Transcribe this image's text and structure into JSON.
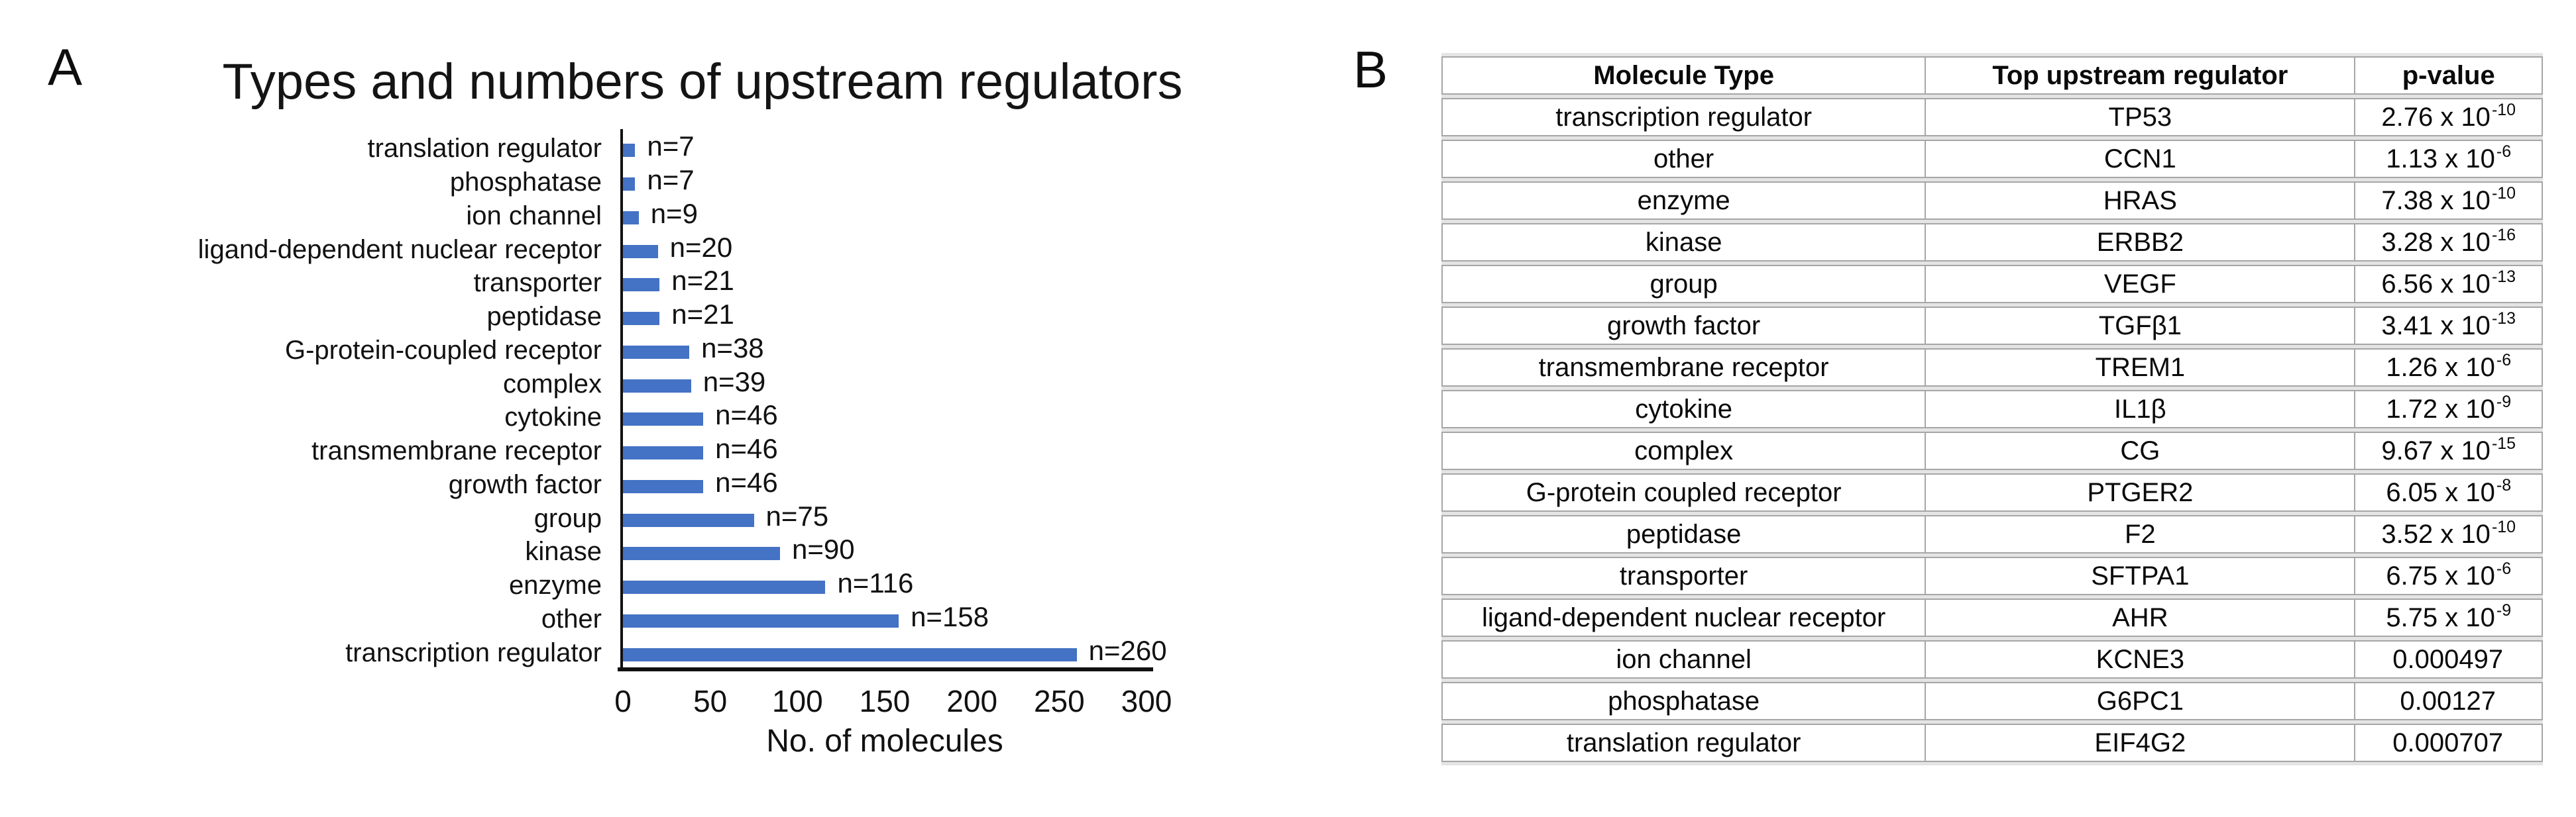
{
  "panel_labels": {
    "a": "A",
    "b": "B"
  },
  "colors": {
    "bar": "#4472C4",
    "axis": "#111111",
    "table_border": "#a6a6a6",
    "text": "#000000",
    "background": "#ffffff"
  },
  "chart_data": [
    {
      "type": "bar",
      "orientation": "horizontal",
      "title": "Types and numbers of upstream regulators",
      "xlabel": "No. of molecules",
      "xlim": [
        0,
        300
      ],
      "x_ticks": [
        0,
        50,
        100,
        150,
        200,
        250,
        300
      ],
      "grid": false,
      "legend": false,
      "bar_color": "#4472C4",
      "categories": [
        "translation regulator",
        "phosphatase",
        "ion channel",
        "ligand-dependent nuclear receptor",
        "transporter",
        "peptidase",
        "G-protein-coupled receptor",
        "complex",
        "cytokine",
        "transmembrane receptor",
        "growth factor",
        "group",
        "kinase",
        "enzyme",
        "other",
        "transcription regulator"
      ],
      "values": [
        7,
        7,
        9,
        20,
        21,
        21,
        38,
        39,
        46,
        46,
        46,
        75,
        90,
        116,
        158,
        260
      ],
      "bar_labels": [
        "n=7",
        "n=7",
        "n=9",
        "n=20",
        "n=21",
        "n=21",
        "n=38",
        "n=39",
        "n=46",
        "n=46",
        "n=46",
        "n=75",
        "n=90",
        "n=116",
        "n=158",
        "n=260"
      ]
    },
    {
      "type": "table",
      "columns": [
        "Molecule Type",
        "Top upstream regulator",
        "p-value"
      ],
      "rows": [
        {
          "molecule_type": "transcription regulator",
          "top_regulator": "TP53",
          "p_base": "2.76 x 10",
          "p_exp": "-10"
        },
        {
          "molecule_type": "other",
          "top_regulator": "CCN1",
          "p_base": "1.13 x 10",
          "p_exp": "-6"
        },
        {
          "molecule_type": "enzyme",
          "top_regulator": "HRAS",
          "p_base": "7.38 x 10",
          "p_exp": "-10"
        },
        {
          "molecule_type": "kinase",
          "top_regulator": "ERBB2",
          "p_base": "3.28 x 10",
          "p_exp": "-16"
        },
        {
          "molecule_type": "group",
          "top_regulator": "VEGF",
          "p_base": "6.56 x 10",
          "p_exp": "-13"
        },
        {
          "molecule_type": "growth factor",
          "top_regulator": "TGFβ1",
          "p_base": "3.41 x 10",
          "p_exp": "-13"
        },
        {
          "molecule_type": "transmembrane receptor",
          "top_regulator": "TREM1",
          "p_base": "1.26 x 10",
          "p_exp": "-6"
        },
        {
          "molecule_type": "cytokine",
          "top_regulator": "IL1β",
          "p_base": "1.72 x 10",
          "p_exp": "-9"
        },
        {
          "molecule_type": "complex",
          "top_regulator": "CG",
          "p_base": "9.67 x 10",
          "p_exp": "-15"
        },
        {
          "molecule_type": "G-protein coupled receptor",
          "top_regulator": "PTGER2",
          "p_base": "6.05 x 10",
          "p_exp": "-8"
        },
        {
          "molecule_type": "peptidase",
          "top_regulator": "F2",
          "p_base": "3.52 x 10",
          "p_exp": "-10"
        },
        {
          "molecule_type": "transporter",
          "top_regulator": "SFTPA1",
          "p_base": "6.75 x 10",
          "p_exp": "-6"
        },
        {
          "molecule_type": "ligand-dependent nuclear receptor",
          "top_regulator": "AHR",
          "p_base": "5.75 x 10",
          "p_exp": "-9"
        },
        {
          "molecule_type": "ion channel",
          "top_regulator": "KCNE3",
          "p_base": "0.000497",
          "p_exp": ""
        },
        {
          "molecule_type": "phosphatase",
          "top_regulator": "G6PC1",
          "p_base": "0.00127",
          "p_exp": ""
        },
        {
          "molecule_type": "translation regulator",
          "top_regulator": "EIF4G2",
          "p_base": "0.000707",
          "p_exp": ""
        }
      ]
    }
  ]
}
